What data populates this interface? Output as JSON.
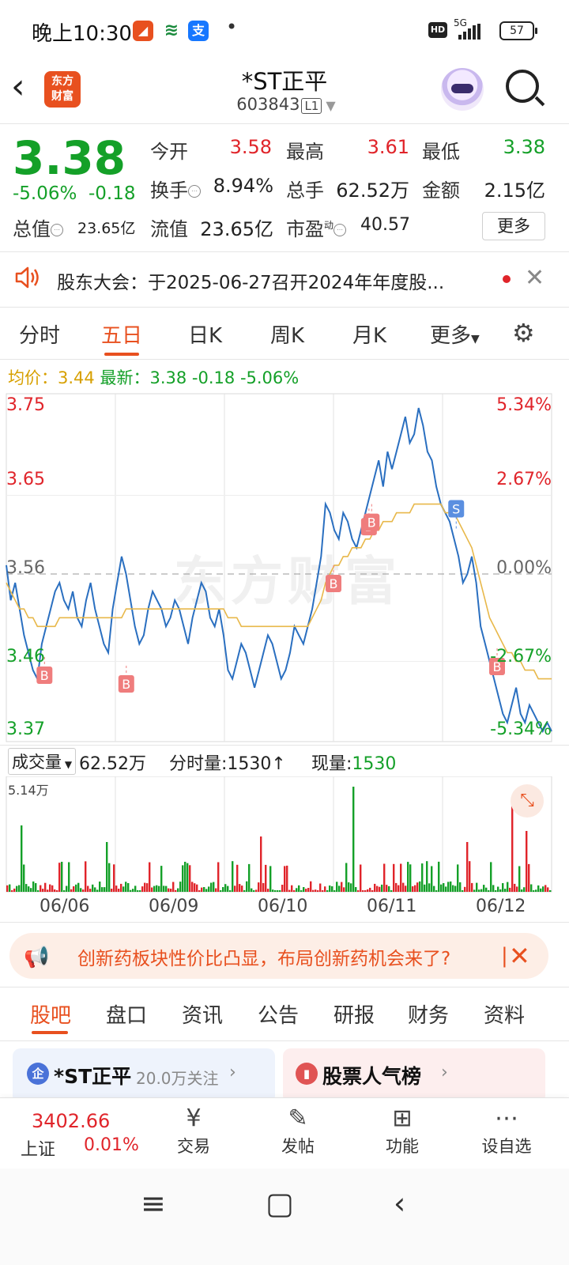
{
  "status": {
    "time": "晚上10:30",
    "network": "5G",
    "battery": "57",
    "hd": "HD"
  },
  "header": {
    "title": "*ST正平",
    "code": "603843",
    "level": "L1",
    "logo_line1": "东方",
    "logo_line2": "财富"
  },
  "quote": {
    "price": "3.38",
    "change_pct": "-5.06%",
    "change": "-0.18",
    "open_label": "今开",
    "open": "3.58",
    "high_label": "最高",
    "high": "3.61",
    "low_label": "最低",
    "low": "3.38",
    "turnover_label": "换手",
    "turnover": "8.94%",
    "volume_label": "总手",
    "volume": "62.52万",
    "amount_label": "金额",
    "amount": "2.15亿",
    "mktcap_label": "总值",
    "mktcap": "23.65亿",
    "float_label": "流值",
    "float": "23.65亿",
    "pe_label": "市盈",
    "pe_sup": "动",
    "pe": "40.57",
    "more": "更多"
  },
  "notice": {
    "text": "股东大会：于2025-06-27召开2024年年度股..."
  },
  "chart_tabs": [
    "分时",
    "五日",
    "日K",
    "周K",
    "月K",
    "更多"
  ],
  "avgline": {
    "avg_label": "均价：",
    "avg": "3.44",
    "latest_label": "最新：",
    "latest": "3.38",
    "chg": "-0.18",
    "pct": "-5.06%"
  },
  "chart_data": {
    "type": "line",
    "ylim": [
      3.37,
      3.75
    ],
    "y_ticks_left": [
      "3.75",
      "3.65",
      "3.56",
      "3.46",
      "3.37"
    ],
    "y_ticks_right": [
      "5.34%",
      "2.67%",
      "0.00%",
      "-2.67%",
      "-5.34%"
    ],
    "x_labels": [
      "06/06",
      "06/09",
      "06/10",
      "06/11",
      "06/12"
    ],
    "watermark": "东方财富",
    "markers": [
      {
        "t": 0.07,
        "p": 3.465,
        "label": "B"
      },
      {
        "t": 0.22,
        "p": 3.455,
        "label": "B"
      },
      {
        "t": 0.6,
        "p": 3.57,
        "label": "B"
      },
      {
        "t": 0.665,
        "p": 3.635,
        "label": "B"
      },
      {
        "t": 0.67,
        "p": 3.64,
        "label": "B"
      },
      {
        "t": 0.825,
        "p": 3.612,
        "label": "S"
      },
      {
        "t": 0.9,
        "p": 3.475,
        "label": "B"
      }
    ],
    "price_series": [
      3.57,
      3.53,
      3.55,
      3.52,
      3.49,
      3.47,
      3.45,
      3.44,
      3.48,
      3.5,
      3.52,
      3.54,
      3.55,
      3.53,
      3.52,
      3.54,
      3.51,
      3.5,
      3.53,
      3.55,
      3.52,
      3.5,
      3.48,
      3.47,
      3.52,
      3.55,
      3.58,
      3.56,
      3.53,
      3.5,
      3.48,
      3.49,
      3.52,
      3.54,
      3.53,
      3.52,
      3.5,
      3.51,
      3.53,
      3.52,
      3.5,
      3.48,
      3.51,
      3.53,
      3.55,
      3.54,
      3.51,
      3.5,
      3.52,
      3.49,
      3.45,
      3.44,
      3.46,
      3.48,
      3.47,
      3.45,
      3.43,
      3.45,
      3.47,
      3.49,
      3.48,
      3.46,
      3.44,
      3.45,
      3.47,
      3.5,
      3.49,
      3.48,
      3.5,
      3.52,
      3.55,
      3.58,
      3.64,
      3.63,
      3.61,
      3.6,
      3.63,
      3.62,
      3.6,
      3.59,
      3.61,
      3.63,
      3.65,
      3.67,
      3.69,
      3.66,
      3.7,
      3.68,
      3.7,
      3.72,
      3.74,
      3.71,
      3.72,
      3.75,
      3.73,
      3.7,
      3.69,
      3.66,
      3.64,
      3.63,
      3.62,
      3.6,
      3.58,
      3.55,
      3.56,
      3.58,
      3.55,
      3.5,
      3.48,
      3.46,
      3.44,
      3.42,
      3.4,
      3.39,
      3.41,
      3.43,
      3.4,
      3.39,
      3.41,
      3.4,
      3.39,
      3.38,
      3.39,
      3.38
    ],
    "avg_series": [
      3.55,
      3.54,
      3.53,
      3.52,
      3.52,
      3.51,
      3.51,
      3.5,
      3.5,
      3.5,
      3.5,
      3.5,
      3.51,
      3.51,
      3.51,
      3.51,
      3.51,
      3.51,
      3.51,
      3.51,
      3.51,
      3.51,
      3.51,
      3.51,
      3.51,
      3.51,
      3.51,
      3.52,
      3.52,
      3.52,
      3.52,
      3.52,
      3.52,
      3.52,
      3.52,
      3.52,
      3.52,
      3.52,
      3.52,
      3.52,
      3.52,
      3.52,
      3.52,
      3.52,
      3.52,
      3.52,
      3.52,
      3.52,
      3.52,
      3.52,
      3.51,
      3.51,
      3.51,
      3.5,
      3.5,
      3.5,
      3.5,
      3.5,
      3.5,
      3.5,
      3.5,
      3.5,
      3.5,
      3.5,
      3.5,
      3.5,
      3.5,
      3.5,
      3.5,
      3.51,
      3.52,
      3.53,
      3.55,
      3.56,
      3.57,
      3.57,
      3.58,
      3.58,
      3.59,
      3.59,
      3.59,
      3.6,
      3.6,
      3.61,
      3.61,
      3.62,
      3.62,
      3.62,
      3.63,
      3.63,
      3.63,
      3.63,
      3.64,
      3.64,
      3.64,
      3.64,
      3.64,
      3.64,
      3.64,
      3.63,
      3.63,
      3.63,
      3.62,
      3.61,
      3.6,
      3.59,
      3.57,
      3.55,
      3.53,
      3.51,
      3.5,
      3.49,
      3.48,
      3.47,
      3.47,
      3.46,
      3.46,
      3.45,
      3.45,
      3.45,
      3.44,
      3.44,
      3.44,
      3.44
    ]
  },
  "volume": {
    "label": "成交量",
    "total": "62.52万",
    "tick_label": "分时量:",
    "tick": "1530",
    "now_label": "现量:",
    "now": "1530",
    "max": "5.14万"
  },
  "banner": {
    "text": "创新药板块性价比凸显，布局创新药机会来了?"
  },
  "info_tabs": [
    "股吧",
    "盘口",
    "资讯",
    "公告",
    "研报",
    "财务",
    "资料"
  ],
  "cards": {
    "stock_name": "*ST正平",
    "followers": "20.0万关注",
    "rank_title": "股票人气榜",
    "stock_icon": "企"
  },
  "bottom": {
    "index_value": "3402.66",
    "index_name": "上证",
    "index_pct": "0.01%",
    "items": [
      "交易",
      "发帖",
      "功能",
      "设自选"
    ]
  }
}
